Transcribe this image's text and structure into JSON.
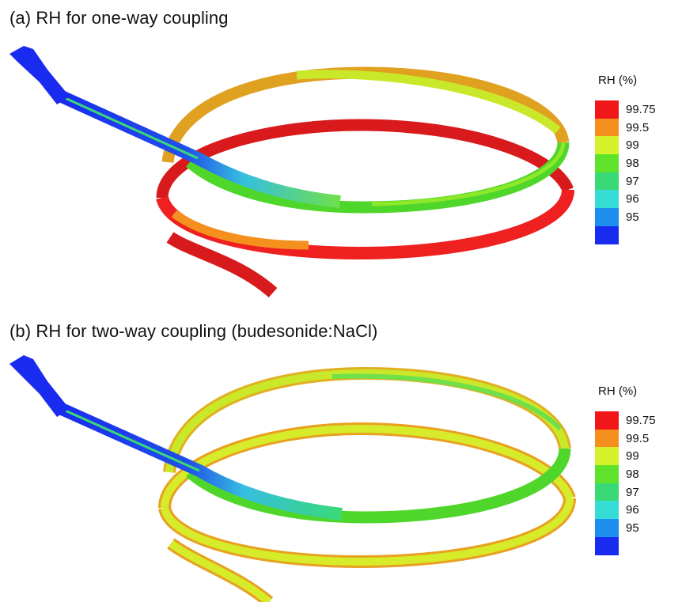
{
  "panels": [
    {
      "title": "(a) RH for one-way coupling",
      "legend": {
        "title": "RH (%)",
        "entries": [
          {
            "label": "99.75",
            "color": "#f0161a"
          },
          {
            "label": "99.5",
            "color": "#f5901e"
          },
          {
            "label": "99",
            "color": "#d6f22a"
          },
          {
            "label": "98",
            "color": "#5ee32a"
          },
          {
            "label": "97",
            "color": "#3ad977"
          },
          {
            "label": "96",
            "color": "#35ddd5"
          },
          {
            "label": "95",
            "color": "#1c8ff0"
          },
          {
            "label": "",
            "color": "#1a2bf0"
          }
        ]
      }
    },
    {
      "title": "(b) RH for two-way coupling (budesonide:NaCl)",
      "legend": {
        "title": "RH (%)",
        "entries": [
          {
            "label": "99.75",
            "color": "#f0161a"
          },
          {
            "label": "99.5",
            "color": "#f5901e"
          },
          {
            "label": "99",
            "color": "#d6f22a"
          },
          {
            "label": "98",
            "color": "#5ee32a"
          },
          {
            "label": "97",
            "color": "#3ad977"
          },
          {
            "label": "96",
            "color": "#35ddd5"
          },
          {
            "label": "95",
            "color": "#1c8ff0"
          },
          {
            "label": "",
            "color": "#1a2bf0"
          }
        ]
      }
    }
  ]
}
